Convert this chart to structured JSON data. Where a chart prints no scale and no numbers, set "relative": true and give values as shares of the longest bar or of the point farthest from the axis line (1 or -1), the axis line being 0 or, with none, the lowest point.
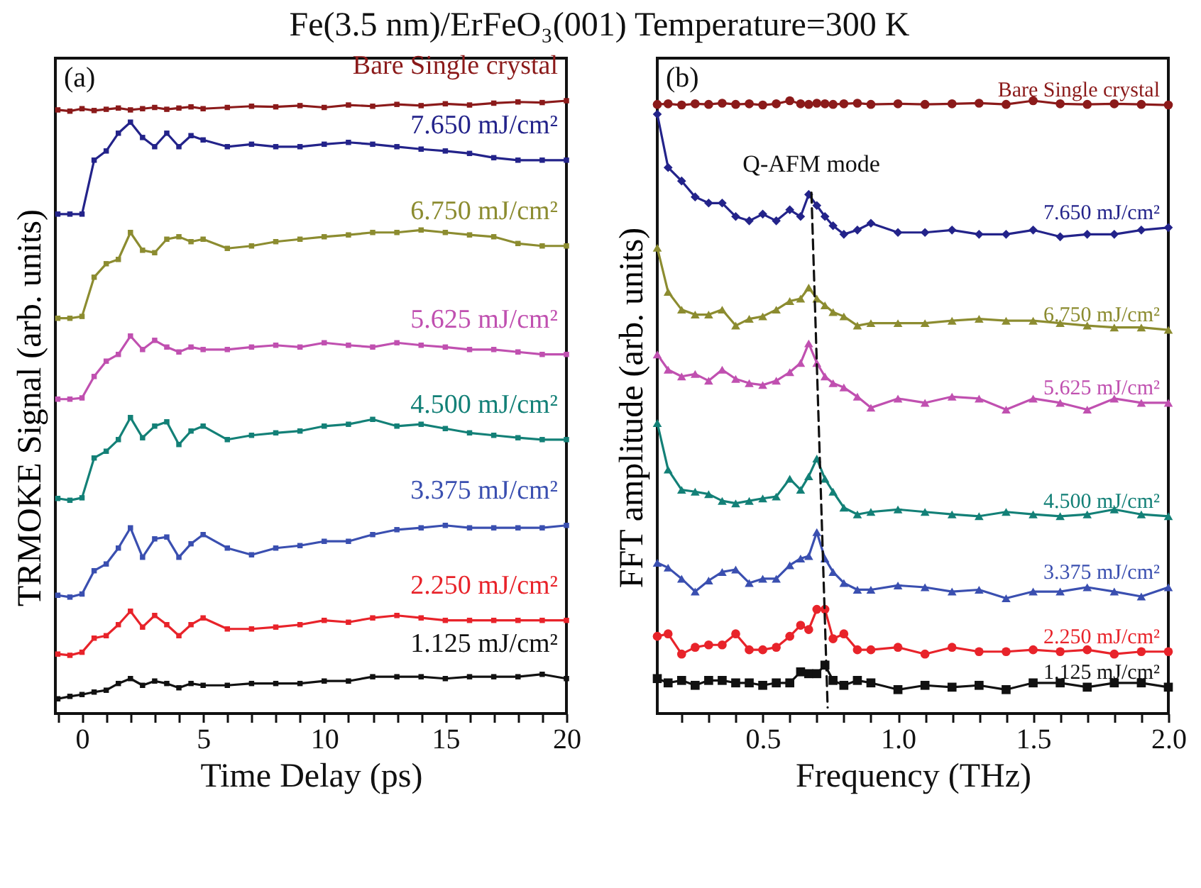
{
  "chart_data": [
    {
      "type": "line",
      "title": "Fe(3.5 nm)/ErFeO₃(001) Temperature=300 K",
      "xlabel": "Time Delay (ps)",
      "ylabel": "TRMOKE Signal (arb. units)",
      "relative": true,
      "marker": "square",
      "annotations": [
        "(a)"
      ],
      "xlim": [
        -1.1,
        20
      ],
      "xticks": [
        {
          "value": -1,
          "label": null
        },
        0,
        {
          "value": 1,
          "label": null
        },
        {
          "value": 2,
          "label": null
        },
        {
          "value": 3,
          "label": null
        },
        {
          "value": 4,
          "label": null
        },
        5,
        {
          "value": 6,
          "label": null
        },
        {
          "value": 7,
          "label": null
        },
        {
          "value": 8,
          "label": null
        },
        {
          "value": 9,
          "label": null
        },
        10,
        {
          "value": 11,
          "label": null
        },
        {
          "value": 12,
          "label": null
        },
        {
          "value": 13,
          "label": null
        },
        {
          "value": 14,
          "label": null
        },
        15,
        {
          "value": 16,
          "label": null
        },
        {
          "value": 17,
          "label": null
        },
        {
          "value": 18,
          "label": null
        },
        {
          "value": 19,
          "label": null
        },
        20
      ],
      "x": [
        -1,
        -0.5,
        0,
        0.5,
        1,
        1.5,
        2,
        2.5,
        3,
        3.5,
        4,
        4.5,
        5,
        6,
        7,
        8,
        9,
        10,
        11,
        12,
        13,
        14,
        15,
        16,
        17,
        18,
        19,
        20
      ],
      "series": [
        {
          "name": "Bare Single crystal",
          "color": "#8b1a1a",
          "values": [
            0.985,
            0.983,
            0.987,
            0.984,
            0.986,
            0.988,
            0.985,
            0.987,
            0.989,
            0.986,
            0.988,
            0.99,
            0.987,
            0.989,
            0.991,
            0.99,
            0.992,
            0.989,
            0.993,
            0.991,
            0.994,
            0.992,
            0.995,
            0.993,
            0.996,
            0.998,
            0.997,
            1.0
          ]
        },
        {
          "name": "7.650 mJ/cm²",
          "color": "#23238a",
          "values": [
            0.815,
            0.815,
            0.815,
            0.903,
            0.918,
            0.947,
            0.965,
            0.94,
            0.925,
            0.947,
            0.925,
            0.943,
            0.936,
            0.925,
            0.929,
            0.925,
            0.925,
            0.929,
            0.932,
            0.929,
            0.925,
            0.921,
            0.918,
            0.914,
            0.907,
            0.903,
            0.903,
            0.903
          ]
        },
        {
          "name": "6.750 mJ/cm²",
          "color": "#8c8c30",
          "values": [
            0.645,
            0.645,
            0.648,
            0.712,
            0.734,
            0.741,
            0.785,
            0.756,
            0.752,
            0.774,
            0.778,
            0.77,
            0.774,
            0.759,
            0.763,
            0.77,
            0.774,
            0.778,
            0.781,
            0.785,
            0.785,
            0.789,
            0.785,
            0.781,
            0.778,
            0.767,
            0.763,
            0.763
          ]
        },
        {
          "name": "5.625 mJ/cm²",
          "color": "#c050b0",
          "values": [
            0.513,
            0.513,
            0.515,
            0.55,
            0.575,
            0.586,
            0.616,
            0.594,
            0.609,
            0.598,
            0.59,
            0.598,
            0.594,
            0.594,
            0.598,
            0.601,
            0.598,
            0.605,
            0.601,
            0.598,
            0.605,
            0.601,
            0.598,
            0.594,
            0.594,
            0.59,
            0.586,
            0.586
          ]
        },
        {
          "name": "4.500 mJ/cm²",
          "color": "#138077",
          "values": [
            0.351,
            0.348,
            0.352,
            0.417,
            0.428,
            0.447,
            0.483,
            0.45,
            0.469,
            0.476,
            0.439,
            0.461,
            0.469,
            0.447,
            0.454,
            0.458,
            0.461,
            0.469,
            0.472,
            0.48,
            0.469,
            0.472,
            0.465,
            0.458,
            0.454,
            0.45,
            0.447,
            0.447
          ]
        },
        {
          "name": "3.375 mJ/cm²",
          "color": "#3a4fb0",
          "values": [
            0.193,
            0.19,
            0.195,
            0.233,
            0.244,
            0.27,
            0.303,
            0.255,
            0.285,
            0.288,
            0.255,
            0.277,
            0.292,
            0.27,
            0.259,
            0.27,
            0.274,
            0.281,
            0.281,
            0.292,
            0.3,
            0.303,
            0.307,
            0.303,
            0.303,
            0.303,
            0.303,
            0.307
          ]
        },
        {
          "name": "2.250 mJ/cm²",
          "color": "#e8232a",
          "values": [
            0.097,
            0.095,
            0.1,
            0.123,
            0.127,
            0.145,
            0.167,
            0.141,
            0.16,
            0.145,
            0.127,
            0.145,
            0.156,
            0.138,
            0.138,
            0.141,
            0.145,
            0.152,
            0.149,
            0.156,
            0.16,
            0.156,
            0.152,
            0.152,
            0.152,
            0.152,
            0.152,
            0.152
          ]
        },
        {
          "name": "1.125 mJ/cm²",
          "color": "#111111",
          "values": [
            0.024,
            0.028,
            0.031,
            0.035,
            0.038,
            0.049,
            0.057,
            0.046,
            0.053,
            0.049,
            0.042,
            0.049,
            0.046,
            0.046,
            0.049,
            0.049,
            0.049,
            0.053,
            0.053,
            0.06,
            0.06,
            0.06,
            0.057,
            0.06,
            0.06,
            0.06,
            0.064,
            0.057
          ]
        }
      ]
    },
    {
      "type": "line",
      "xlabel": "Frequency (THz)",
      "ylabel": "FFT amplitude (arb. units)",
      "relative": true,
      "annotations": [
        "(b)",
        {
          "text": "Q-AFM mode",
          "x": 0.68,
          "y": 0.847
        }
      ],
      "xlim": [
        0.11,
        2.0
      ],
      "xticks": [
        {
          "value": 0.2,
          "label": null
        },
        {
          "value": 0.3,
          "label": null
        },
        {
          "value": 0.4,
          "label": null
        },
        0.5,
        {
          "value": 0.6,
          "label": null
        },
        {
          "value": 0.7,
          "label": null
        },
        {
          "value": 0.8,
          "label": null
        },
        {
          "value": 0.9,
          "label": null
        },
        {
          "value": 1,
          "label": "1.0"
        },
        {
          "value": 1.1,
          "label": null
        },
        {
          "value": 1.2,
          "label": null
        },
        {
          "value": 1.3,
          "label": null
        },
        {
          "value": 1.4,
          "label": null
        },
        1.5,
        {
          "value": 1.6,
          "label": null
        },
        {
          "value": 1.7,
          "label": null
        },
        {
          "value": 1.8,
          "label": null
        },
        {
          "value": 1.9,
          "label": null
        },
        {
          "value": 2,
          "label": "2.0"
        }
      ],
      "x": [
        0.11,
        0.15,
        0.2,
        0.25,
        0.3,
        0.35,
        0.4,
        0.45,
        0.5,
        0.55,
        0.6,
        0.64,
        0.67,
        0.7,
        0.73,
        0.76,
        0.8,
        0.85,
        0.9,
        1.0,
        1.1,
        1.2,
        1.3,
        1.4,
        1.5,
        1.6,
        1.7,
        1.8,
        1.9,
        2.0
      ],
      "series": [
        {
          "name": "Bare Single crystal",
          "color": "#8b1a1a",
          "marker": "circle",
          "values": [
            0.994,
            0.995,
            0.993,
            0.995,
            0.994,
            0.996,
            0.994,
            0.995,
            0.993,
            0.995,
            1.0,
            0.995,
            0.994,
            0.996,
            0.995,
            0.994,
            0.995,
            0.996,
            0.994,
            0.995,
            0.994,
            0.995,
            0.996,
            0.994,
            1.0,
            0.995,
            0.994,
            0.995,
            0.994,
            0.993
          ]
        },
        {
          "name": "7.650 mJ/cm²",
          "color": "#23238a",
          "marker": "diamond",
          "values": [
            0.978,
            0.891,
            0.869,
            0.843,
            0.833,
            0.833,
            0.811,
            0.804,
            0.815,
            0.804,
            0.822,
            0.811,
            0.847,
            0.829,
            0.811,
            0.796,
            0.782,
            0.789,
            0.8,
            0.785,
            0.785,
            0.789,
            0.782,
            0.782,
            0.789,
            0.778,
            0.782,
            0.782,
            0.789,
            0.793
          ]
        },
        {
          "name": "6.750 mJ/cm²",
          "color": "#8c8c30",
          "marker": "triangle",
          "values": [
            0.76,
            0.688,
            0.659,
            0.651,
            0.651,
            0.659,
            0.633,
            0.644,
            0.648,
            0.659,
            0.673,
            0.677,
            0.695,
            0.677,
            0.666,
            0.655,
            0.648,
            0.633,
            0.637,
            0.637,
            0.637,
            0.641,
            0.644,
            0.641,
            0.641,
            0.637,
            0.633,
            0.63,
            0.63,
            0.626
          ]
        },
        {
          "name": "5.625 mJ/cm²",
          "color": "#c050b0",
          "marker": "triangle",
          "values": [
            0.586,
            0.561,
            0.55,
            0.554,
            0.543,
            0.561,
            0.546,
            0.539,
            0.536,
            0.543,
            0.557,
            0.572,
            0.604,
            0.572,
            0.55,
            0.539,
            0.532,
            0.517,
            0.499,
            0.514,
            0.507,
            0.517,
            0.514,
            0.496,
            0.514,
            0.507,
            0.496,
            0.514,
            0.507,
            0.507
          ]
        },
        {
          "name": "4.500 mJ/cm²",
          "color": "#138077",
          "marker": "triangle",
          "values": [
            0.474,
            0.398,
            0.365,
            0.362,
            0.358,
            0.347,
            0.343,
            0.347,
            0.351,
            0.354,
            0.383,
            0.365,
            0.387,
            0.416,
            0.383,
            0.362,
            0.336,
            0.325,
            0.329,
            0.333,
            0.329,
            0.325,
            0.322,
            0.329,
            0.325,
            0.322,
            0.325,
            0.333,
            0.325,
            0.322
          ]
        },
        {
          "name": "3.375 mJ/cm²",
          "color": "#3a4fb0",
          "marker": "triangle",
          "values": [
            0.246,
            0.238,
            0.22,
            0.199,
            0.217,
            0.231,
            0.235,
            0.213,
            0.22,
            0.22,
            0.242,
            0.253,
            0.257,
            0.296,
            0.253,
            0.231,
            0.213,
            0.202,
            0.202,
            0.209,
            0.206,
            0.199,
            0.202,
            0.188,
            0.199,
            0.199,
            0.206,
            0.199,
            0.191,
            0.206
          ]
        },
        {
          "name": "2.250 mJ/cm²",
          "color": "#e8232a",
          "marker": "circle",
          "values": [
            0.126,
            0.13,
            0.097,
            0.108,
            0.112,
            0.112,
            0.13,
            0.104,
            0.104,
            0.108,
            0.126,
            0.144,
            0.137,
            0.17,
            0.17,
            0.122,
            0.13,
            0.104,
            0.104,
            0.108,
            0.097,
            0.108,
            0.101,
            0.101,
            0.104,
            0.101,
            0.104,
            0.097,
            0.101,
            0.101
          ]
        },
        {
          "name": "1.125 mJ/cm²",
          "color": "#111111",
          "marker": "square",
          "values": [
            0.057,
            0.05,
            0.054,
            0.046,
            0.054,
            0.054,
            0.05,
            0.05,
            0.046,
            0.05,
            0.05,
            0.068,
            0.065,
            0.065,
            0.079,
            0.054,
            0.046,
            0.054,
            0.05,
            0.039,
            0.046,
            0.043,
            0.046,
            0.039,
            0.05,
            0.05,
            0.043,
            0.05,
            0.05,
            0.043
          ]
        },
        {
          "type": "line",
          "color": "#111111",
          "marker": "none",
          "line_style": "dashed",
          "x": [
            0.68,
            0.74
          ],
          "values": [
            0.85,
            0.01
          ]
        }
      ]
    }
  ]
}
